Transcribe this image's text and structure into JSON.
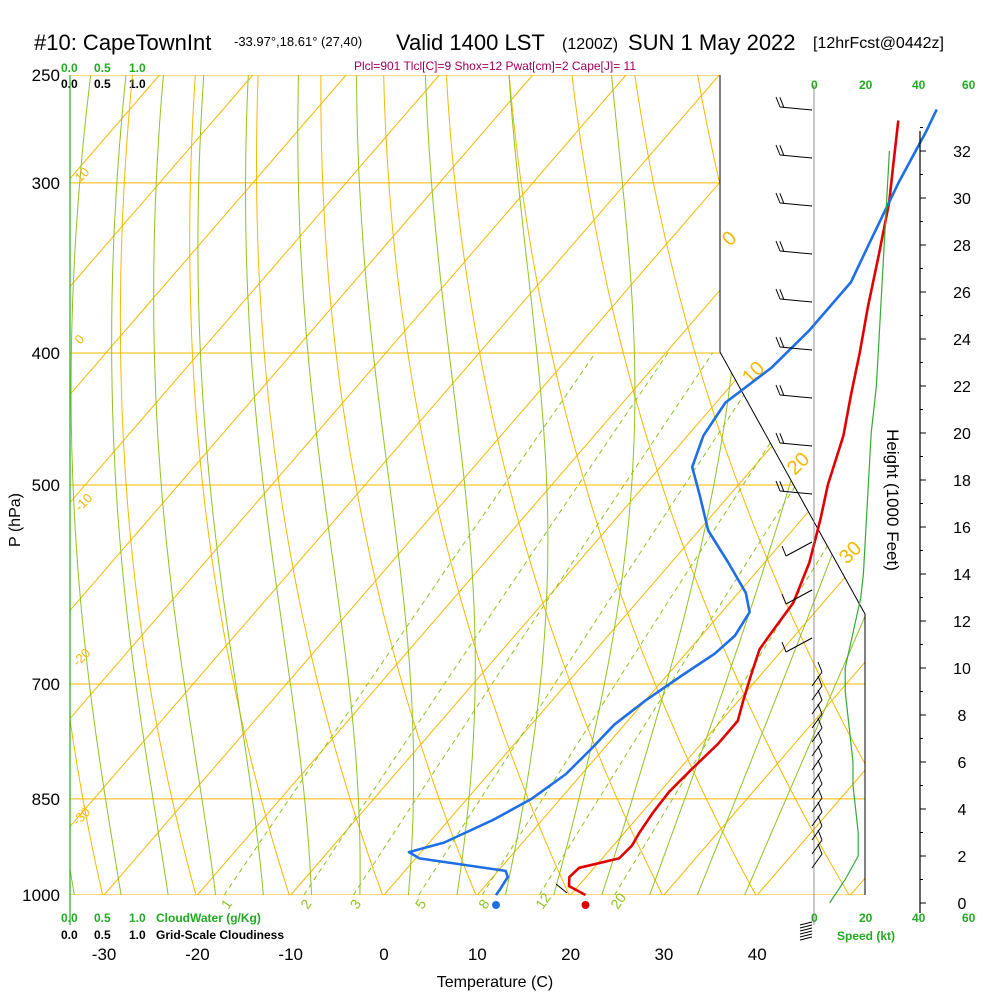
{
  "header": {
    "station": "#10: CapeTownInt",
    "coords": "-33.97°,18.61° (27,40)",
    "valid": "Valid 1400 LST",
    "zulu": "(1200Z)",
    "date": "SUN 1 May 2022",
    "forecast": "[12hrFcst@0442z]"
  },
  "indices": "Plcl=901 Tlcl[C]=9 Shox=12 Pwat[cm]=2 Cape[J]= 11",
  "scales": {
    "cloudwater_ticks": [
      "0.0",
      "0.5",
      "1.0"
    ],
    "cloudiness_ticks": [
      "0.0",
      "0.5",
      "1.0"
    ],
    "cloudwater_label": "CloudWater (g/Kg)",
    "cloudiness_label": "Grid-Scale Cloudiness",
    "speed_ticks": [
      "0",
      "20",
      "40",
      "60"
    ],
    "speed_label": "Speed (kt)"
  },
  "colors": {
    "isobar": "#f5b800",
    "isotherm": "#f5b800",
    "dry_adiabat": "#f5b800",
    "moist_adiabat": "#8fc31f",
    "mixing_ratio": "#8fc31f",
    "temperature": "#e00000",
    "dewpoint": "#1e6fe6",
    "wind_speed": "#33aa33",
    "indices": "#a0005a",
    "scale_green": "#22aa22"
  },
  "chart_data": {
    "type": "line",
    "title": "#10: CapeTownInt -33.97°,18.61° (27,40) Valid 1400 LST (1200Z) SUN 1 May 2022 [12hrFcst@0442z]",
    "xlabel": "Temperature (C)",
    "ylabel": "P (hPa)",
    "y2label": "Height (1000 Feet)",
    "x_ticks": [
      -30,
      -20,
      -10,
      0,
      10,
      20,
      30,
      40
    ],
    "p_ticks": [
      250,
      300,
      400,
      500,
      700,
      850,
      1000
    ],
    "height_ticks": [
      0,
      2,
      4,
      6,
      8,
      10,
      12,
      14,
      16,
      18,
      20,
      22,
      24,
      26,
      28,
      30,
      32
    ],
    "isotherm_labels": [
      {
        "value": "10",
        "t": 10
      },
      {
        "value": "0",
        "t": 0
      },
      {
        "value": "-10",
        "t": -10
      },
      {
        "value": "-20",
        "t": -20
      },
      {
        "value": "-30",
        "t": -30
      },
      {
        "value": "0",
        "t": 0
      },
      {
        "value": "10",
        "t": 10
      },
      {
        "value": "20",
        "t": 20
      },
      {
        "value": "30",
        "t": 30
      }
    ],
    "mixing_ratio_labels": [
      "1",
      "2",
      "3",
      "5",
      "8",
      "12",
      "20"
    ],
    "series": [
      {
        "name": "temperature",
        "points": [
          [
            1000,
            21.6
          ],
          [
            985,
            19.0
          ],
          [
            970,
            18.2
          ],
          [
            955,
            18.4
          ],
          [
            940,
            21.8
          ],
          [
            920,
            22.0
          ],
          [
            900,
            21.6
          ],
          [
            870,
            21.2
          ],
          [
            840,
            21.0
          ],
          [
            810,
            21.3
          ],
          [
            775,
            21.8
          ],
          [
            745,
            21.8
          ],
          [
            720,
            20.5
          ],
          [
            690,
            19.0
          ],
          [
            660,
            17.5
          ],
          [
            640,
            17.2
          ],
          [
            610,
            16.8
          ],
          [
            570,
            14.8
          ],
          [
            530,
            12.0
          ],
          [
            500,
            9.6
          ],
          [
            460,
            6.7
          ],
          [
            430,
            3.8
          ],
          [
            400,
            0.8
          ],
          [
            370,
            -2.6
          ],
          [
            340,
            -6.1
          ],
          [
            310,
            -10.0
          ],
          [
            290,
            -13.2
          ],
          [
            270,
            -16.6
          ]
        ]
      },
      {
        "name": "dewpoint",
        "points": [
          [
            1000,
            12.0
          ],
          [
            990,
            11.9
          ],
          [
            970,
            11.6
          ],
          [
            960,
            10.8
          ],
          [
            940,
            0.4
          ],
          [
            930,
            -1.3
          ],
          [
            915,
            1.6
          ],
          [
            880,
            4.8
          ],
          [
            850,
            6.9
          ],
          [
            815,
            8.3
          ],
          [
            780,
            8.7
          ],
          [
            750,
            8.9
          ],
          [
            720,
            10.0
          ],
          [
            690,
            11.6
          ],
          [
            665,
            13.1
          ],
          [
            645,
            13.6
          ],
          [
            620,
            13.0
          ],
          [
            600,
            10.8
          ],
          [
            570,
            6.1
          ],
          [
            540,
            1.0
          ],
          [
            510,
            -3.0
          ],
          [
            485,
            -6.6
          ],
          [
            460,
            -8.3
          ],
          [
            435,
            -9.0
          ],
          [
            410,
            -7.3
          ],
          [
            385,
            -6.7
          ],
          [
            355,
            -6.7
          ],
          [
            330,
            -8.5
          ],
          [
            300,
            -10.8
          ],
          [
            275,
            -12.6
          ],
          [
            265,
            -13.5
          ]
        ]
      }
    ],
    "surface_temperature": 21.6,
    "surface_dewpoint": 12.0,
    "wind_profile_kt": [
      [
        0,
        6
      ],
      [
        1,
        12
      ],
      [
        2,
        17
      ],
      [
        3,
        17
      ],
      [
        4,
        16
      ],
      [
        5,
        15
      ],
      [
        6,
        15
      ],
      [
        7,
        14
      ],
      [
        8,
        13
      ],
      [
        9,
        12
      ],
      [
        10,
        12
      ],
      [
        11,
        14
      ],
      [
        12,
        16
      ],
      [
        13,
        18
      ],
      [
        14,
        19
      ],
      [
        16,
        20
      ],
      [
        18,
        21
      ],
      [
        20,
        22
      ],
      [
        22,
        24
      ],
      [
        24,
        25
      ],
      [
        26,
        26
      ],
      [
        28,
        27
      ],
      [
        30,
        28
      ],
      [
        32,
        29
      ]
    ]
  }
}
